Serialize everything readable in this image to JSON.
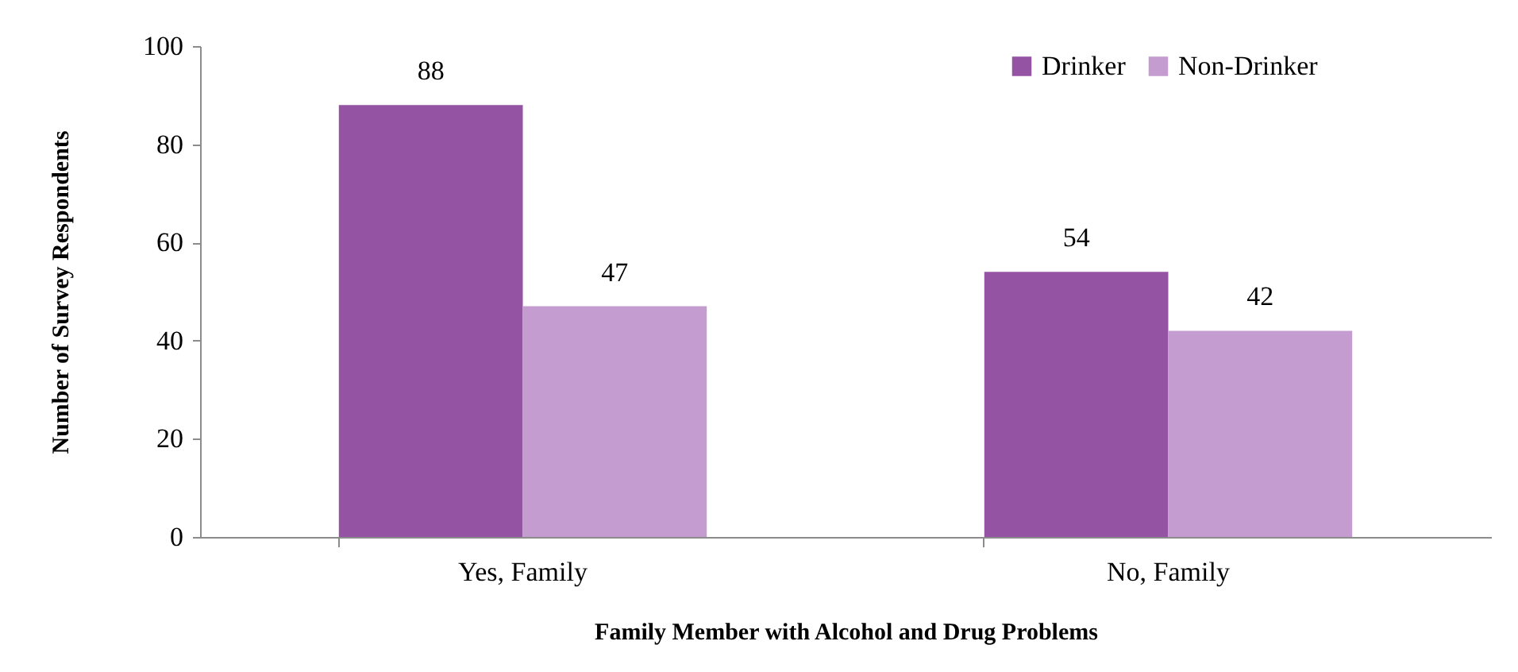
{
  "chart_data": {
    "type": "bar",
    "categories": [
      "Yes, Family",
      "No, Family"
    ],
    "series": [
      {
        "name": "Drinker",
        "color": "#9553a3",
        "values": [
          88,
          54
        ]
      },
      {
        "name": "Non-Drinker",
        "color": "#c59ccf",
        "values": [
          47,
          42
        ]
      }
    ],
    "xlabel": "Family Member with Alcohol and Drug Problems",
    "ylabel": "Number of Survey Respondents",
    "ylim": [
      0,
      100
    ],
    "yticks": [
      0,
      20,
      40,
      60,
      80,
      100
    ],
    "legend": "top right",
    "data_labels": true
  }
}
